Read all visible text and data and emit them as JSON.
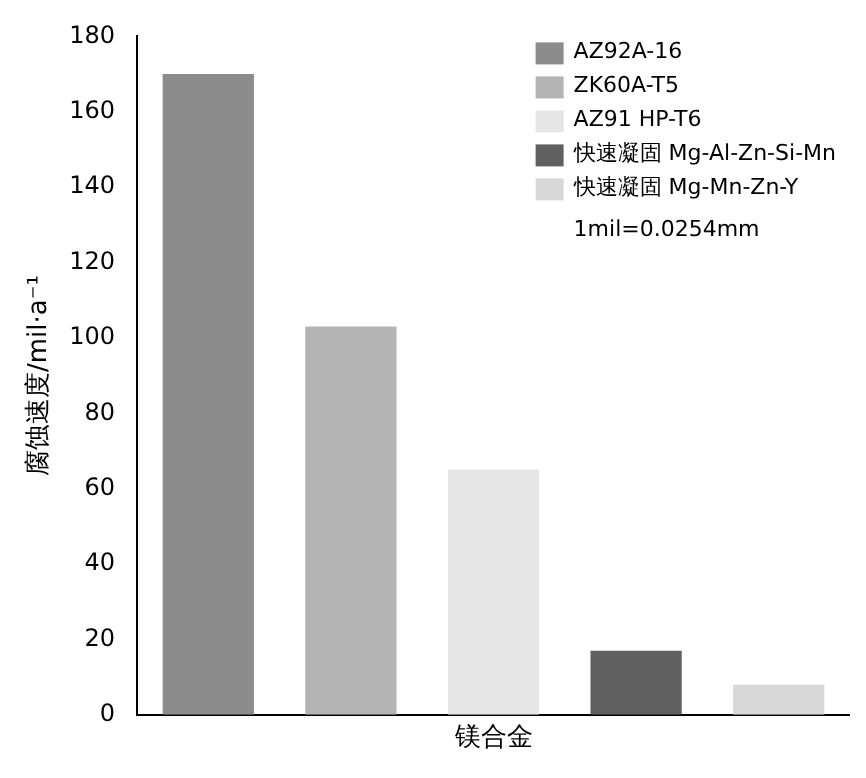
{
  "chart_data": {
    "type": "bar",
    "categories": [
      null,
      null,
      null,
      null,
      null
    ],
    "ylabel": "腐蚀速度/mil·a⁻¹",
    "xlabel": "镁合金",
    "ylim": [
      0,
      180
    ],
    "yticks": [
      0,
      20,
      40,
      60,
      80,
      100,
      120,
      140,
      160,
      180
    ],
    "grid": false,
    "legend": "top right",
    "annotations": [
      "1mil=0.0254mm"
    ],
    "series": [
      {
        "name": "AZ92A-16",
        "color": "#8c8c8c",
        "values": [
          170,
          null,
          null,
          null,
          null
        ]
      },
      {
        "name": "ZK60A-T5",
        "color": "#b4b4b4",
        "values": [
          null,
          103,
          null,
          null,
          null
        ]
      },
      {
        "name": "AZ91 HP-T6",
        "color": "#e6e6e6",
        "values": [
          null,
          null,
          65,
          null,
          null
        ]
      },
      {
        "name": "快速凝固 Mg-Al-Zn-Si-Mn",
        "color": "#606060",
        "values": [
          null,
          null,
          null,
          17,
          null
        ]
      },
      {
        "name": "快速凝固 Mg-Mn-Zn-Y",
        "color": "#d8d8d8",
        "values": [
          null,
          null,
          null,
          null,
          8
        ]
      }
    ]
  }
}
